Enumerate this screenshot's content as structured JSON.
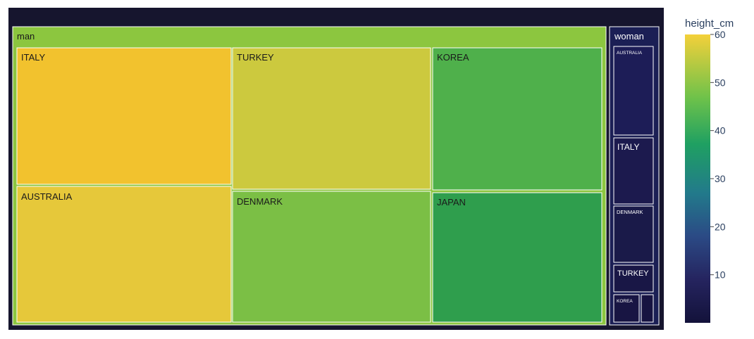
{
  "chart_data": {
    "type": "treemap",
    "colorbar": {
      "title": "height_cm",
      "range": [
        0,
        60
      ],
      "ticks": [
        10,
        20,
        30,
        40,
        50,
        60
      ],
      "colorscale": [
        "#440154",
        "#482878",
        "#3e4989",
        "#31688e",
        "#26828e",
        "#1f9e89",
        "#35b779",
        "#6ece58",
        "#b5de2b",
        "#fde725"
      ],
      "colorscale_name": "Viridis-like"
    },
    "groups": [
      {
        "name": "man",
        "color": "#8cc63f",
        "children": [
          {
            "name": "ITALY",
            "color": "#f2c22e"
          },
          {
            "name": "AUSTRALIA",
            "color": "#e6c83a"
          },
          {
            "name": "TURKEY",
            "color": "#ccc93e"
          },
          {
            "name": "DENMARK",
            "color": "#7bbf45"
          },
          {
            "name": "KOREA",
            "color": "#4fb04b"
          },
          {
            "name": "JAPAN",
            "color": "#2f9e4d"
          }
        ]
      },
      {
        "name": "woman",
        "color": "#1b1f55",
        "children": [
          {
            "name": "AUSTRALIA",
            "color": "#1d1d57"
          },
          {
            "name": "ITALY",
            "color": "#1c1a4e"
          },
          {
            "name": "DENMARK",
            "color": "#1a1a49"
          },
          {
            "name": "TURKEY",
            "color": "#191746"
          },
          {
            "name": "KOREA",
            "color": "#181543"
          },
          {
            "name": "",
            "color": "#171341"
          }
        ]
      }
    ]
  }
}
